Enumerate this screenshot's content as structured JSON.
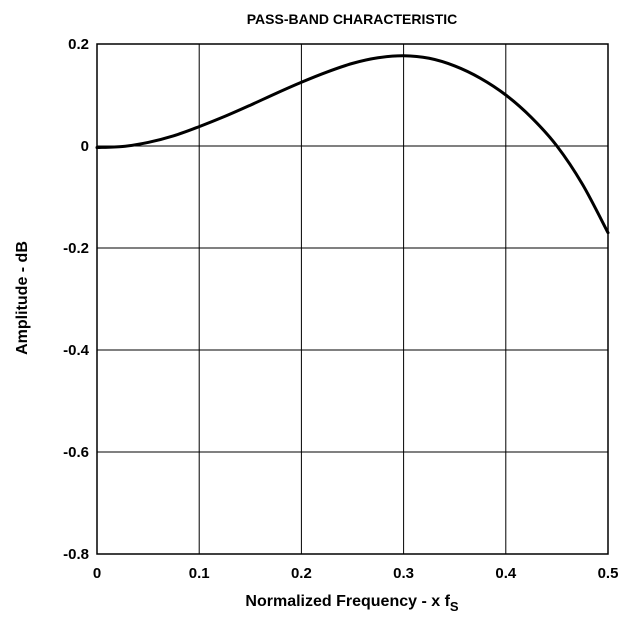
{
  "chart_data": {
    "type": "line",
    "title": "PASS-BAND CHARACTERISTIC",
    "xlabel": "Normalized Frequency - x f",
    "xlabel_subscript": "S",
    "ylabel": "Amplitude - dB",
    "xlim": [
      0,
      0.5
    ],
    "ylim": [
      -0.8,
      0.2
    ],
    "x_ticks": [
      0,
      0.1,
      0.2,
      0.3,
      0.4,
      0.5
    ],
    "x_tick_labels": [
      "0",
      "0.1",
      "0.2",
      "0.3",
      "0.4",
      "0.5"
    ],
    "y_ticks": [
      0.2,
      0,
      -0.2,
      -0.4,
      -0.6,
      -0.8
    ],
    "y_tick_labels": [
      "0.2",
      "0",
      "-0.2",
      "-0.4",
      "-0.6",
      "-0.8"
    ],
    "grid": true,
    "series": [
      {
        "x": [
          0,
          0.025,
          0.05,
          0.075,
          0.1,
          0.125,
          0.15,
          0.175,
          0.2,
          0.225,
          0.25,
          0.275,
          0.3,
          0.325,
          0.35,
          0.375,
          0.4,
          0.425,
          0.45,
          0.475,
          0.5
        ],
        "y": [
          -0.003,
          -0.001,
          0.007,
          0.02,
          0.038,
          0.058,
          0.08,
          0.103,
          0.125,
          0.145,
          0.162,
          0.173,
          0.177,
          0.172,
          0.157,
          0.133,
          0.1,
          0.056,
          0.0,
          -0.075,
          -0.17
        ]
      }
    ]
  }
}
